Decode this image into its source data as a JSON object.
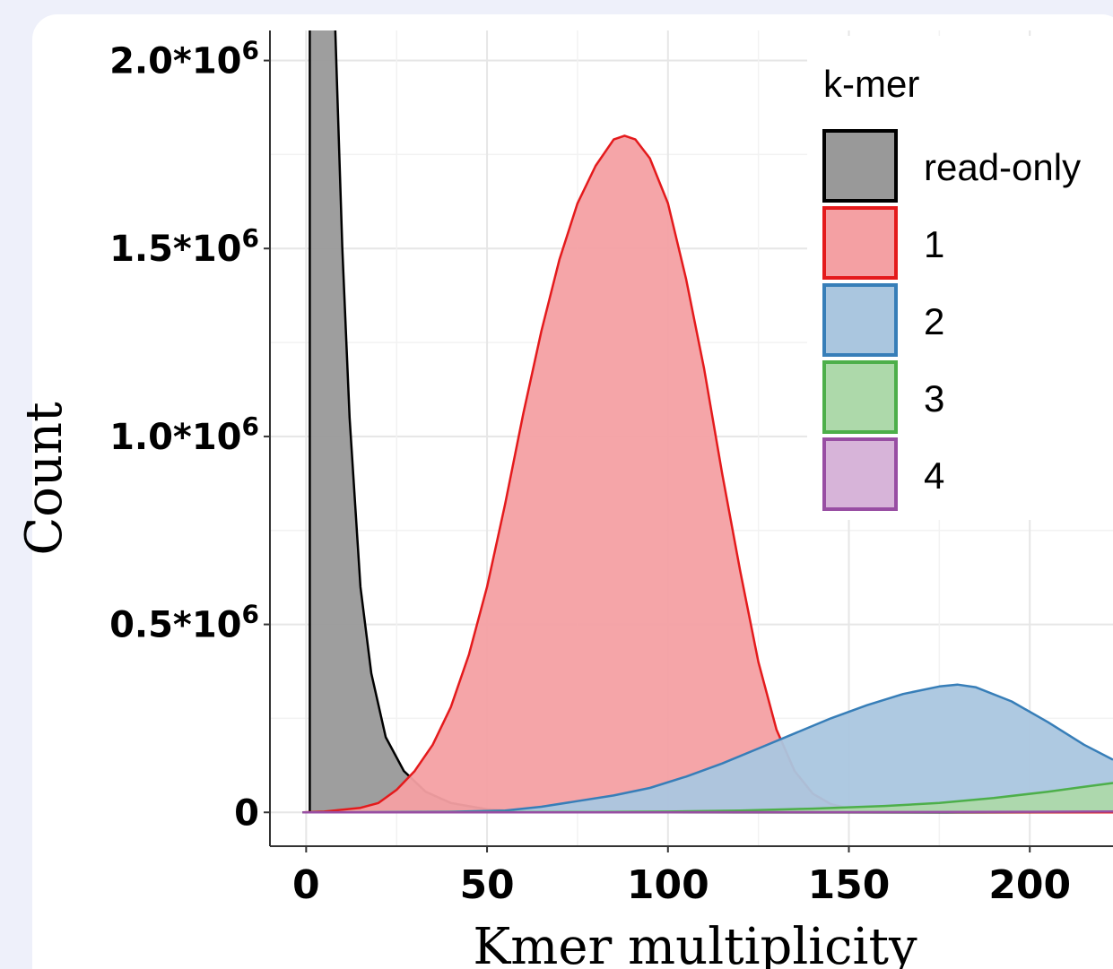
{
  "chart_data": {
    "type": "area",
    "title": "",
    "xlabel": "Kmer multiplicity",
    "ylabel": "Count",
    "xlim": [
      -10,
      223
    ],
    "ylim": [
      -90000,
      2080000
    ],
    "x_ticks": [
      {
        "value": 0,
        "label": "0"
      },
      {
        "value": 50,
        "label": "50"
      },
      {
        "value": 100,
        "label": "100"
      },
      {
        "value": 150,
        "label": "150"
      },
      {
        "value": 200,
        "label": "200"
      }
    ],
    "y_ticks": [
      {
        "value": 0,
        "label": "0"
      },
      {
        "value": 500000,
        "label": "0.5*10",
        "sup": "6"
      },
      {
        "value": 1000000,
        "label": "1.0*10",
        "sup": "6"
      },
      {
        "value": 1500000,
        "label": "1.5*10",
        "sup": "6"
      },
      {
        "value": 2000000,
        "label": "2.0*10",
        "sup": "6"
      }
    ],
    "grid": true,
    "legend": {
      "title": "k-mer",
      "position": "top-right"
    },
    "series": [
      {
        "name": "read-only",
        "fill": "#999999",
        "stroke": "#000000",
        "points": [
          [
            1,
            0
          ],
          [
            1,
            2100000
          ],
          [
            8,
            2100000
          ],
          [
            10,
            1500000
          ],
          [
            12,
            1050000
          ],
          [
            15,
            600000
          ],
          [
            18,
            370000
          ],
          [
            22,
            200000
          ],
          [
            27,
            110000
          ],
          [
            33,
            55000
          ],
          [
            40,
            25000
          ],
          [
            50,
            8000
          ],
          [
            60,
            3000
          ],
          [
            80,
            1000
          ],
          [
            120,
            0
          ],
          [
            223,
            0
          ]
        ]
      },
      {
        "name": "1",
        "fill": "#f4a0a3",
        "stroke": "#e41a1c",
        "points": [
          [
            -1,
            0
          ],
          [
            5,
            2000
          ],
          [
            15,
            12000
          ],
          [
            20,
            25000
          ],
          [
            25,
            60000
          ],
          [
            30,
            110000
          ],
          [
            35,
            180000
          ],
          [
            40,
            280000
          ],
          [
            45,
            420000
          ],
          [
            50,
            600000
          ],
          [
            55,
            820000
          ],
          [
            60,
            1060000
          ],
          [
            65,
            1280000
          ],
          [
            70,
            1470000
          ],
          [
            75,
            1620000
          ],
          [
            80,
            1720000
          ],
          [
            85,
            1790000
          ],
          [
            88,
            1800000
          ],
          [
            91,
            1790000
          ],
          [
            95,
            1740000
          ],
          [
            100,
            1620000
          ],
          [
            105,
            1420000
          ],
          [
            110,
            1180000
          ],
          [
            115,
            900000
          ],
          [
            120,
            640000
          ],
          [
            125,
            400000
          ],
          [
            130,
            220000
          ],
          [
            135,
            110000
          ],
          [
            140,
            50000
          ],
          [
            145,
            22000
          ],
          [
            150,
            10000
          ],
          [
            160,
            3000
          ],
          [
            180,
            800
          ],
          [
            223,
            0
          ]
        ]
      },
      {
        "name": "2",
        "fill": "#aac6df",
        "stroke": "#377eb8",
        "points": [
          [
            -1,
            0
          ],
          [
            40,
            1500
          ],
          [
            55,
            5000
          ],
          [
            65,
            15000
          ],
          [
            75,
            30000
          ],
          [
            85,
            45000
          ],
          [
            95,
            65000
          ],
          [
            105,
            95000
          ],
          [
            115,
            130000
          ],
          [
            125,
            170000
          ],
          [
            135,
            210000
          ],
          [
            145,
            250000
          ],
          [
            155,
            285000
          ],
          [
            165,
            315000
          ],
          [
            175,
            335000
          ],
          [
            180,
            340000
          ],
          [
            185,
            333000
          ],
          [
            195,
            295000
          ],
          [
            205,
            240000
          ],
          [
            215,
            180000
          ],
          [
            223,
            140000
          ]
        ]
      },
      {
        "name": "3",
        "fill": "#add9aa",
        "stroke": "#4daf4a",
        "points": [
          [
            -1,
            0
          ],
          [
            80,
            800
          ],
          [
            100,
            2000
          ],
          [
            120,
            5000
          ],
          [
            140,
            10000
          ],
          [
            160,
            17000
          ],
          [
            175,
            25000
          ],
          [
            190,
            38000
          ],
          [
            205,
            55000
          ],
          [
            215,
            68000
          ],
          [
            223,
            78000
          ]
        ]
      },
      {
        "name": "4",
        "fill": "#d7b4d9",
        "stroke": "#984ea3",
        "points": [
          [
            -1,
            0
          ],
          [
            100,
            200
          ],
          [
            150,
            600
          ],
          [
            200,
            1500
          ],
          [
            223,
            2500
          ]
        ]
      }
    ]
  }
}
